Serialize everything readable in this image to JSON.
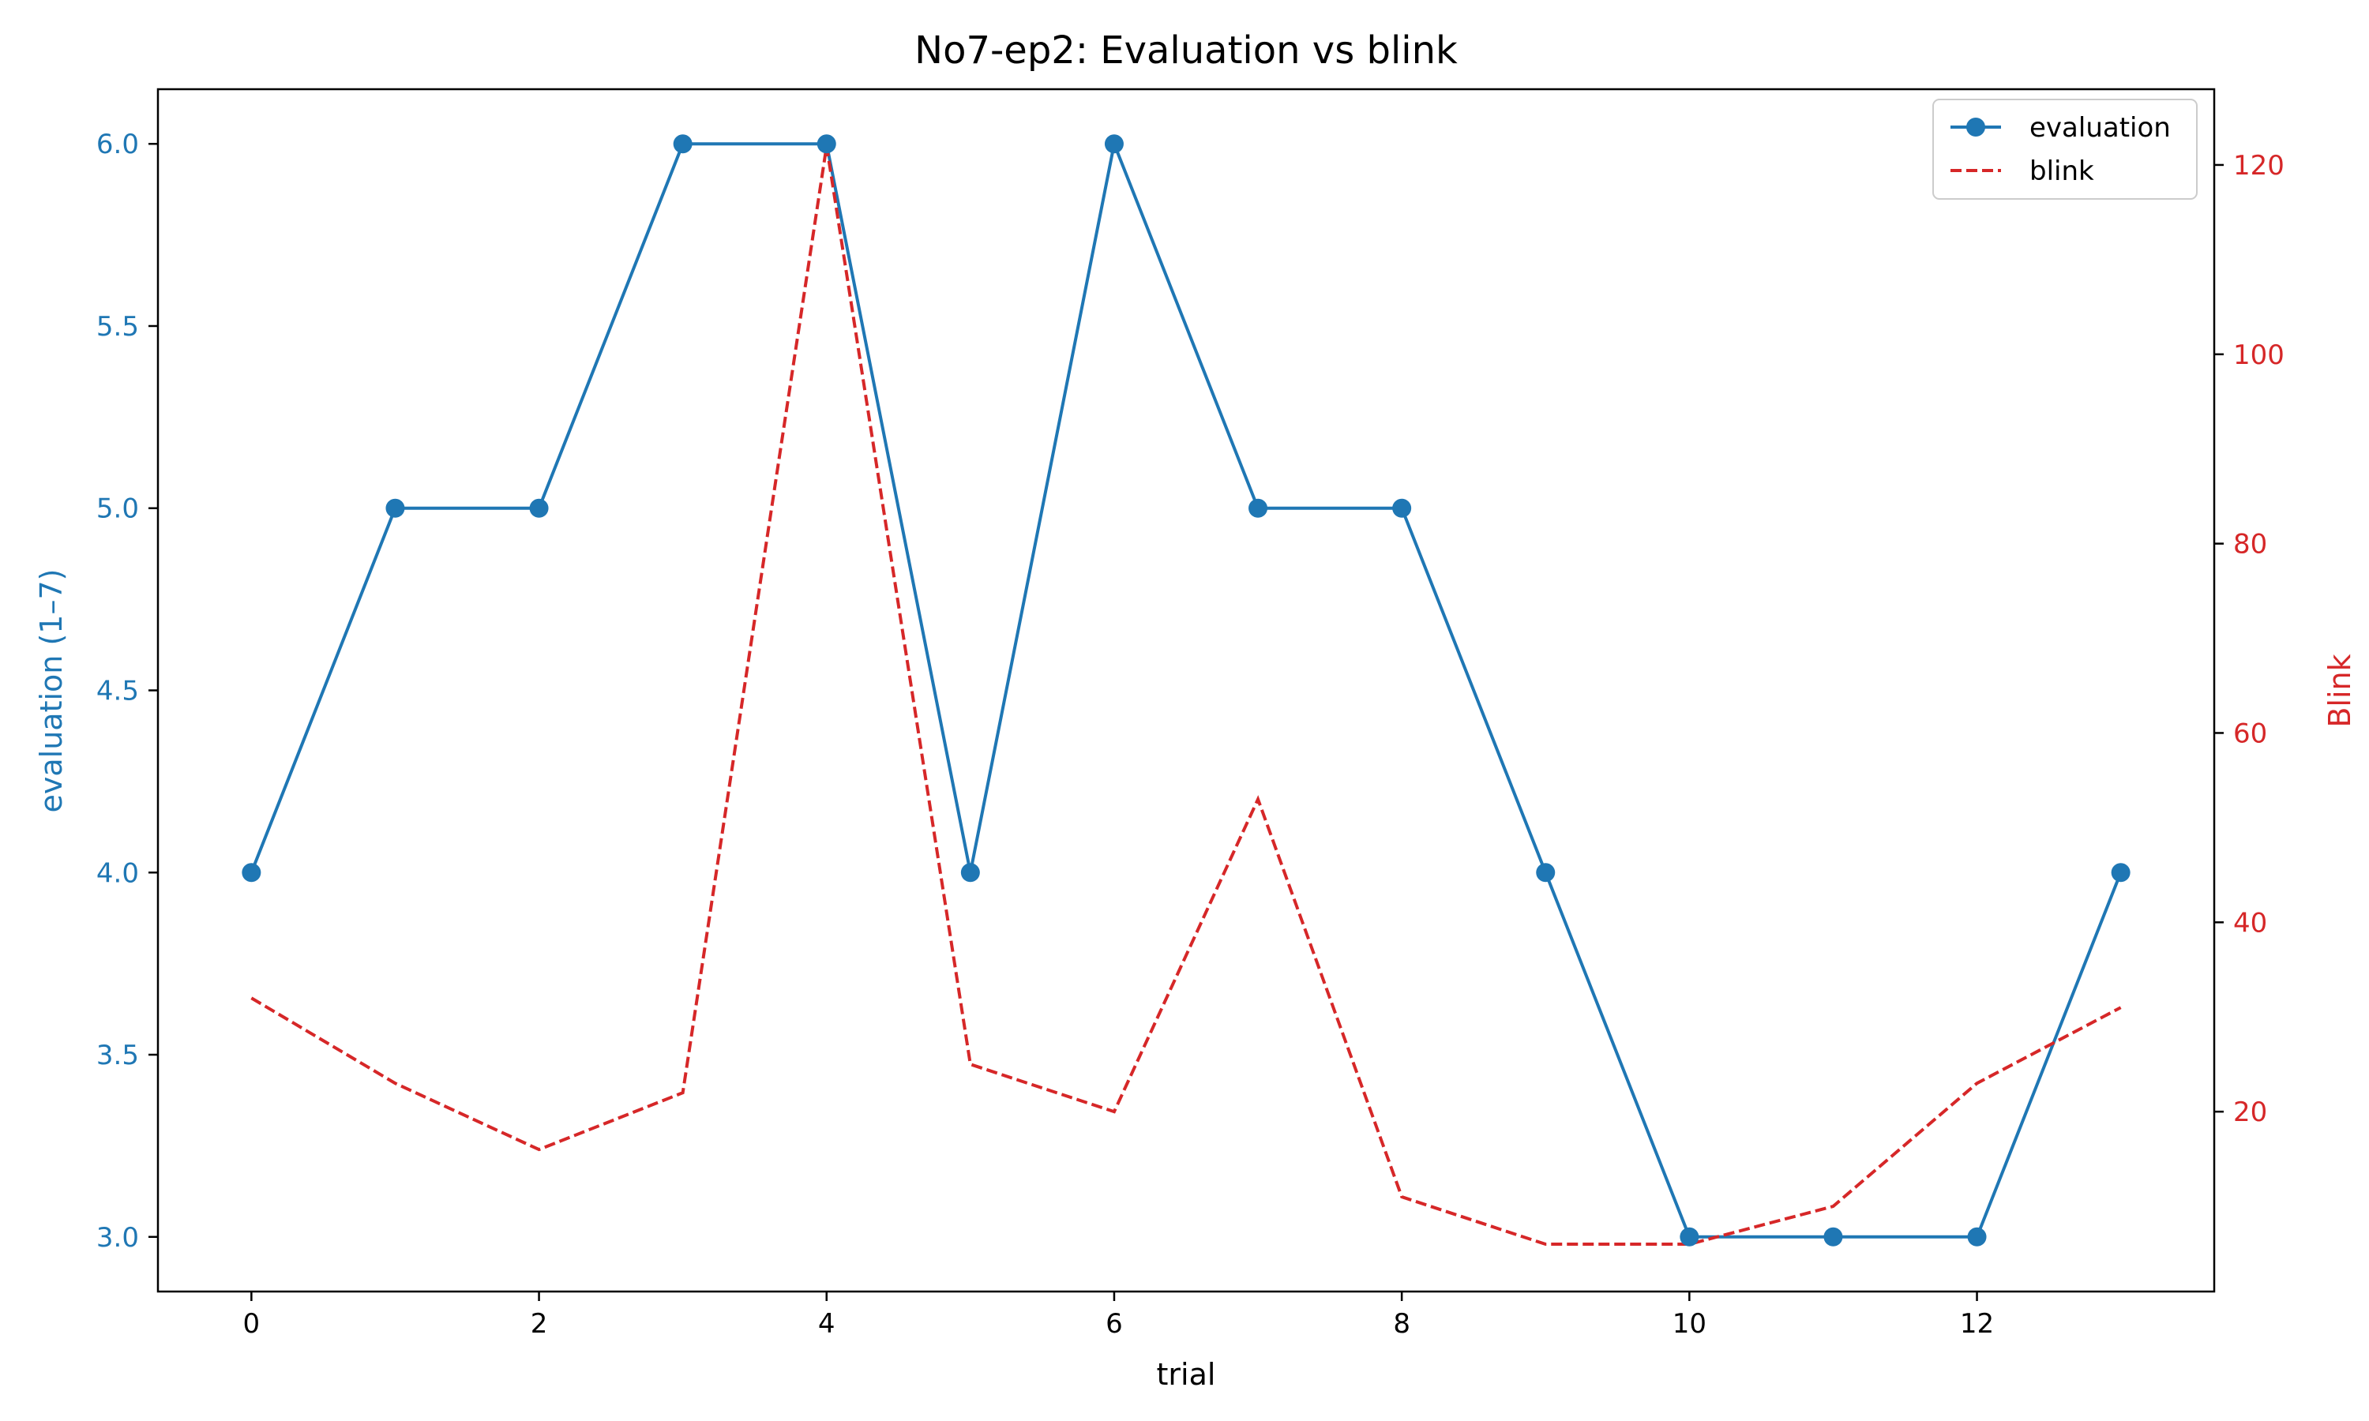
{
  "chart_data": {
    "type": "line",
    "title": "No7-ep2: Evaluation vs blink",
    "xlabel": "trial",
    "ylabel_left": "evaluation (1–7)",
    "ylabel_right": "Blink",
    "x": [
      0,
      1,
      2,
      3,
      4,
      5,
      6,
      7,
      8,
      9,
      10,
      11,
      12,
      13
    ],
    "xlim": [
      -0.65,
      13.65
    ],
    "x_ticks": [
      0,
      2,
      4,
      6,
      8,
      10,
      12
    ],
    "ylim_left": [
      2.85,
      6.15
    ],
    "y_ticks_left": [
      "3.0",
      "3.5",
      "4.0",
      "4.5",
      "5.0",
      "5.5",
      "6.0"
    ],
    "ylim_right": [
      1,
      128
    ],
    "y_ticks_right": [
      20,
      40,
      60,
      80,
      100,
      120
    ],
    "grid": false,
    "legend_position": "top-right",
    "series": [
      {
        "name": "evaluation",
        "axis": "left",
        "color": "#1f77b4",
        "style": "solid-with-markers",
        "values": [
          4,
          5,
          5,
          6,
          6,
          4,
          6,
          5,
          5,
          4,
          3,
          3,
          3,
          4
        ]
      },
      {
        "name": "blink",
        "axis": "right",
        "color": "#d62728",
        "style": "dashed",
        "values": [
          32,
          23,
          16,
          22,
          122,
          25,
          20,
          53,
          11,
          6,
          6,
          10,
          23,
          31
        ]
      }
    ]
  }
}
